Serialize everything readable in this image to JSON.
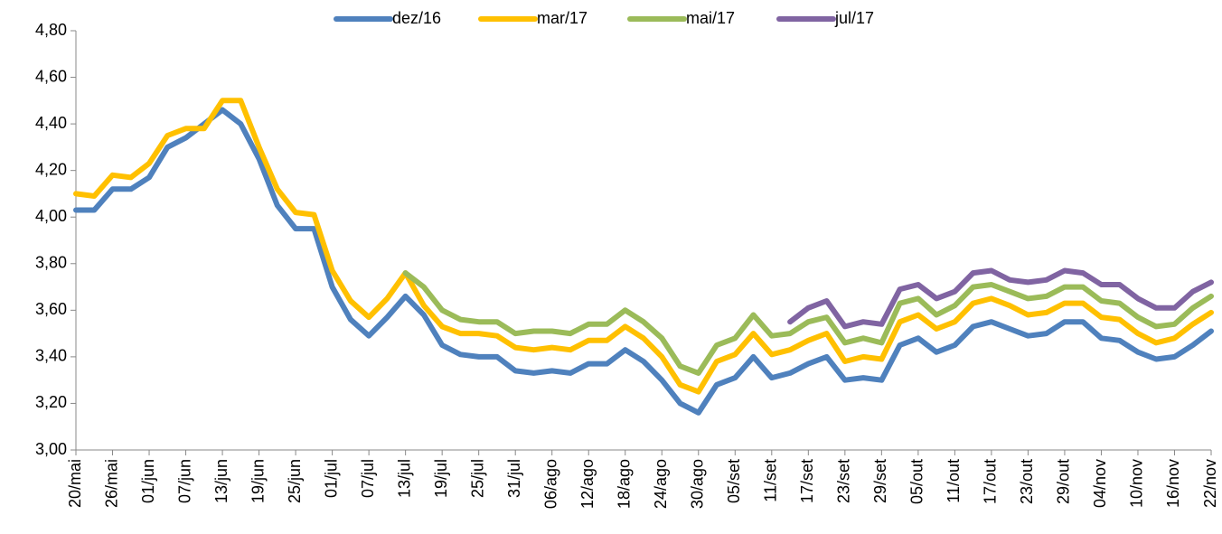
{
  "chart_data": {
    "type": "line",
    "categories": [
      "20/mai",
      null,
      "26/mai",
      null,
      "01/jun",
      null,
      "07/jun",
      null,
      "13/jun",
      null,
      "19/jun",
      null,
      "25/jun",
      null,
      "01/jul",
      null,
      "07/jul",
      null,
      "13/jul",
      null,
      "19/jul",
      null,
      "25/jul",
      null,
      "31/jul",
      null,
      "06/ago",
      null,
      "12/ago",
      null,
      "18/ago",
      null,
      "24/ago",
      null,
      "30/ago",
      null,
      "05/set",
      null,
      "11/set",
      null,
      "17/set",
      null,
      "23/set",
      null,
      "29/set",
      null,
      "05/out",
      null,
      "11/out",
      null,
      "17/out",
      null,
      "23/out",
      null,
      "29/out",
      null,
      "04/nov",
      null,
      "10/nov",
      null,
      "16/nov",
      null,
      "22/nov"
    ],
    "series": [
      {
        "name": "dez/16",
        "color": "#4f81bd",
        "values": [
          4.03,
          4.03,
          4.12,
          4.12,
          4.17,
          4.3,
          4.34,
          4.4,
          4.46,
          4.4,
          4.25,
          4.05,
          3.95,
          3.95,
          3.7,
          3.56,
          3.49,
          3.57,
          3.66,
          3.58,
          3.45,
          3.41,
          3.4,
          3.4,
          3.34,
          3.33,
          3.34,
          3.33,
          3.37,
          3.37,
          3.43,
          3.38,
          3.3,
          3.2,
          3.16,
          3.28,
          3.31,
          3.4,
          3.31,
          3.33,
          3.37,
          3.4,
          3.3,
          3.31,
          3.3,
          3.45,
          3.48,
          3.42,
          3.45,
          3.53,
          3.55,
          3.52,
          3.49,
          3.5,
          3.55,
          3.55,
          3.48,
          3.47,
          3.42,
          3.39,
          3.4,
          3.45,
          3.51
        ]
      },
      {
        "name": "mar/17",
        "color": "#ffc000",
        "values": [
          4.1,
          4.09,
          4.18,
          4.17,
          4.23,
          4.35,
          4.38,
          4.38,
          4.5,
          4.5,
          4.3,
          4.12,
          4.02,
          4.01,
          3.77,
          3.64,
          3.57,
          3.65,
          3.76,
          3.62,
          3.53,
          3.5,
          3.5,
          3.49,
          3.44,
          3.43,
          3.44,
          3.43,
          3.47,
          3.47,
          3.53,
          3.48,
          3.4,
          3.28,
          3.25,
          3.38,
          3.41,
          3.5,
          3.41,
          3.43,
          3.47,
          3.5,
          3.38,
          3.4,
          3.39,
          3.55,
          3.58,
          3.52,
          3.55,
          3.63,
          3.65,
          3.62,
          3.58,
          3.59,
          3.63,
          3.63,
          3.57,
          3.56,
          3.5,
          3.46,
          3.48,
          3.54,
          3.59
        ]
      },
      {
        "name": "mai/17",
        "color": "#9bbb59",
        "values": [
          null,
          null,
          null,
          null,
          null,
          null,
          null,
          null,
          null,
          null,
          null,
          null,
          null,
          null,
          null,
          null,
          null,
          null,
          3.76,
          3.7,
          3.6,
          3.56,
          3.55,
          3.55,
          3.5,
          3.51,
          3.51,
          3.5,
          3.54,
          3.54,
          3.6,
          3.55,
          3.48,
          3.36,
          3.33,
          3.45,
          3.48,
          3.58,
          3.49,
          3.5,
          3.55,
          3.57,
          3.46,
          3.48,
          3.46,
          3.63,
          3.65,
          3.58,
          3.62,
          3.7,
          3.71,
          3.68,
          3.65,
          3.66,
          3.7,
          3.7,
          3.64,
          3.63,
          3.57,
          3.53,
          3.54,
          3.61,
          3.66
        ]
      },
      {
        "name": "jul/17",
        "color": "#8064a2",
        "values": [
          null,
          null,
          null,
          null,
          null,
          null,
          null,
          null,
          null,
          null,
          null,
          null,
          null,
          null,
          null,
          null,
          null,
          null,
          null,
          null,
          null,
          null,
          null,
          null,
          null,
          null,
          null,
          null,
          null,
          null,
          null,
          null,
          null,
          null,
          null,
          null,
          null,
          null,
          null,
          3.55,
          3.61,
          3.64,
          3.53,
          3.55,
          3.54,
          3.69,
          3.71,
          3.65,
          3.68,
          3.76,
          3.77,
          3.73,
          3.72,
          3.73,
          3.77,
          3.76,
          3.71,
          3.71,
          3.65,
          3.61,
          3.61,
          3.68,
          3.72
        ]
      }
    ],
    "ylim": [
      3.0,
      4.8
    ],
    "yticks": [
      {
        "value": 3.0,
        "label": "3,00"
      },
      {
        "value": 3.2,
        "label": "3,20"
      },
      {
        "value": 3.4,
        "label": "3,40"
      },
      {
        "value": 3.6,
        "label": "3,60"
      },
      {
        "value": 3.8,
        "label": "3,80"
      },
      {
        "value": 4.0,
        "label": "4,00"
      },
      {
        "value": 4.2,
        "label": "4,20"
      },
      {
        "value": 4.4,
        "label": "4,40"
      },
      {
        "value": 4.6,
        "label": "4,60"
      },
      {
        "value": 4.8,
        "label": "4,80"
      }
    ],
    "legend": "top",
    "grid": false
  }
}
